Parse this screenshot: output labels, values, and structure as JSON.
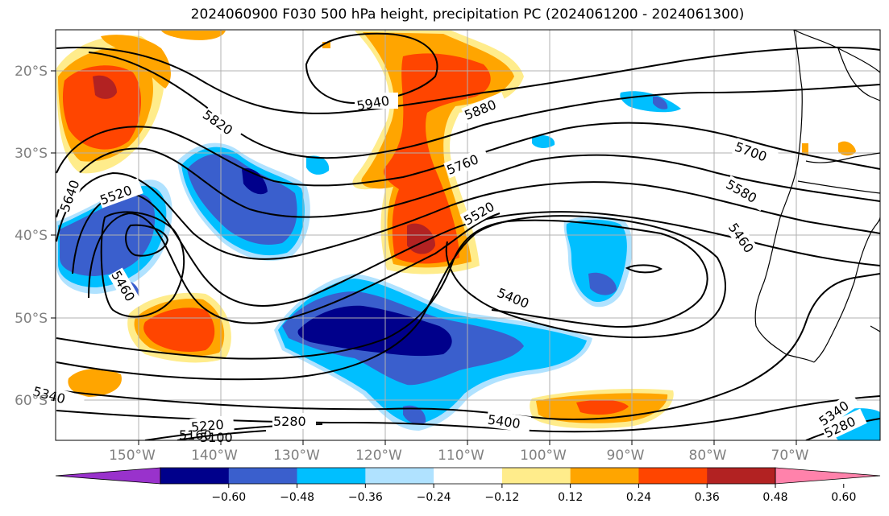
{
  "title": "2024060900 F030 500 hPa height, precipitation PC (2024061200 - 2024061300)",
  "lat_ticks": [
    "20°S",
    "30°S",
    "40°S",
    "50°S",
    "60°S"
  ],
  "lon_ticks": [
    "150°W",
    "140°W",
    "130°W",
    "120°W",
    "110°W",
    "100°W",
    "90°W",
    "80°W",
    "70°W"
  ],
  "colorbar": {
    "ticks": [
      "−0.60",
      "−0.48",
      "−0.36",
      "−0.24",
      "−0.12",
      "0.12",
      "0.24",
      "0.36",
      "0.48",
      "0.60"
    ],
    "colors": [
      "#9932cc",
      "#00008b",
      "#3a5fcd",
      "#00bfff",
      "#b0e2ff",
      "#ffffff",
      "#ffec8b",
      "#ffa500",
      "#ff4500",
      "#b22222",
      "#ff82ab"
    ]
  },
  "contour_labels": [
    "5940",
    "5880",
    "5820",
    "5760",
    "5700",
    "5640",
    "5580",
    "5520",
    "5520",
    "5460",
    "5460",
    "5400",
    "5400",
    "5340",
    "5340",
    "5280",
    "5280",
    "5220",
    "5160",
    "5100"
  ],
  "map_colors": {
    "coast": "#000000",
    "grid": "#b0b0b0",
    "contour": "#000000"
  }
}
